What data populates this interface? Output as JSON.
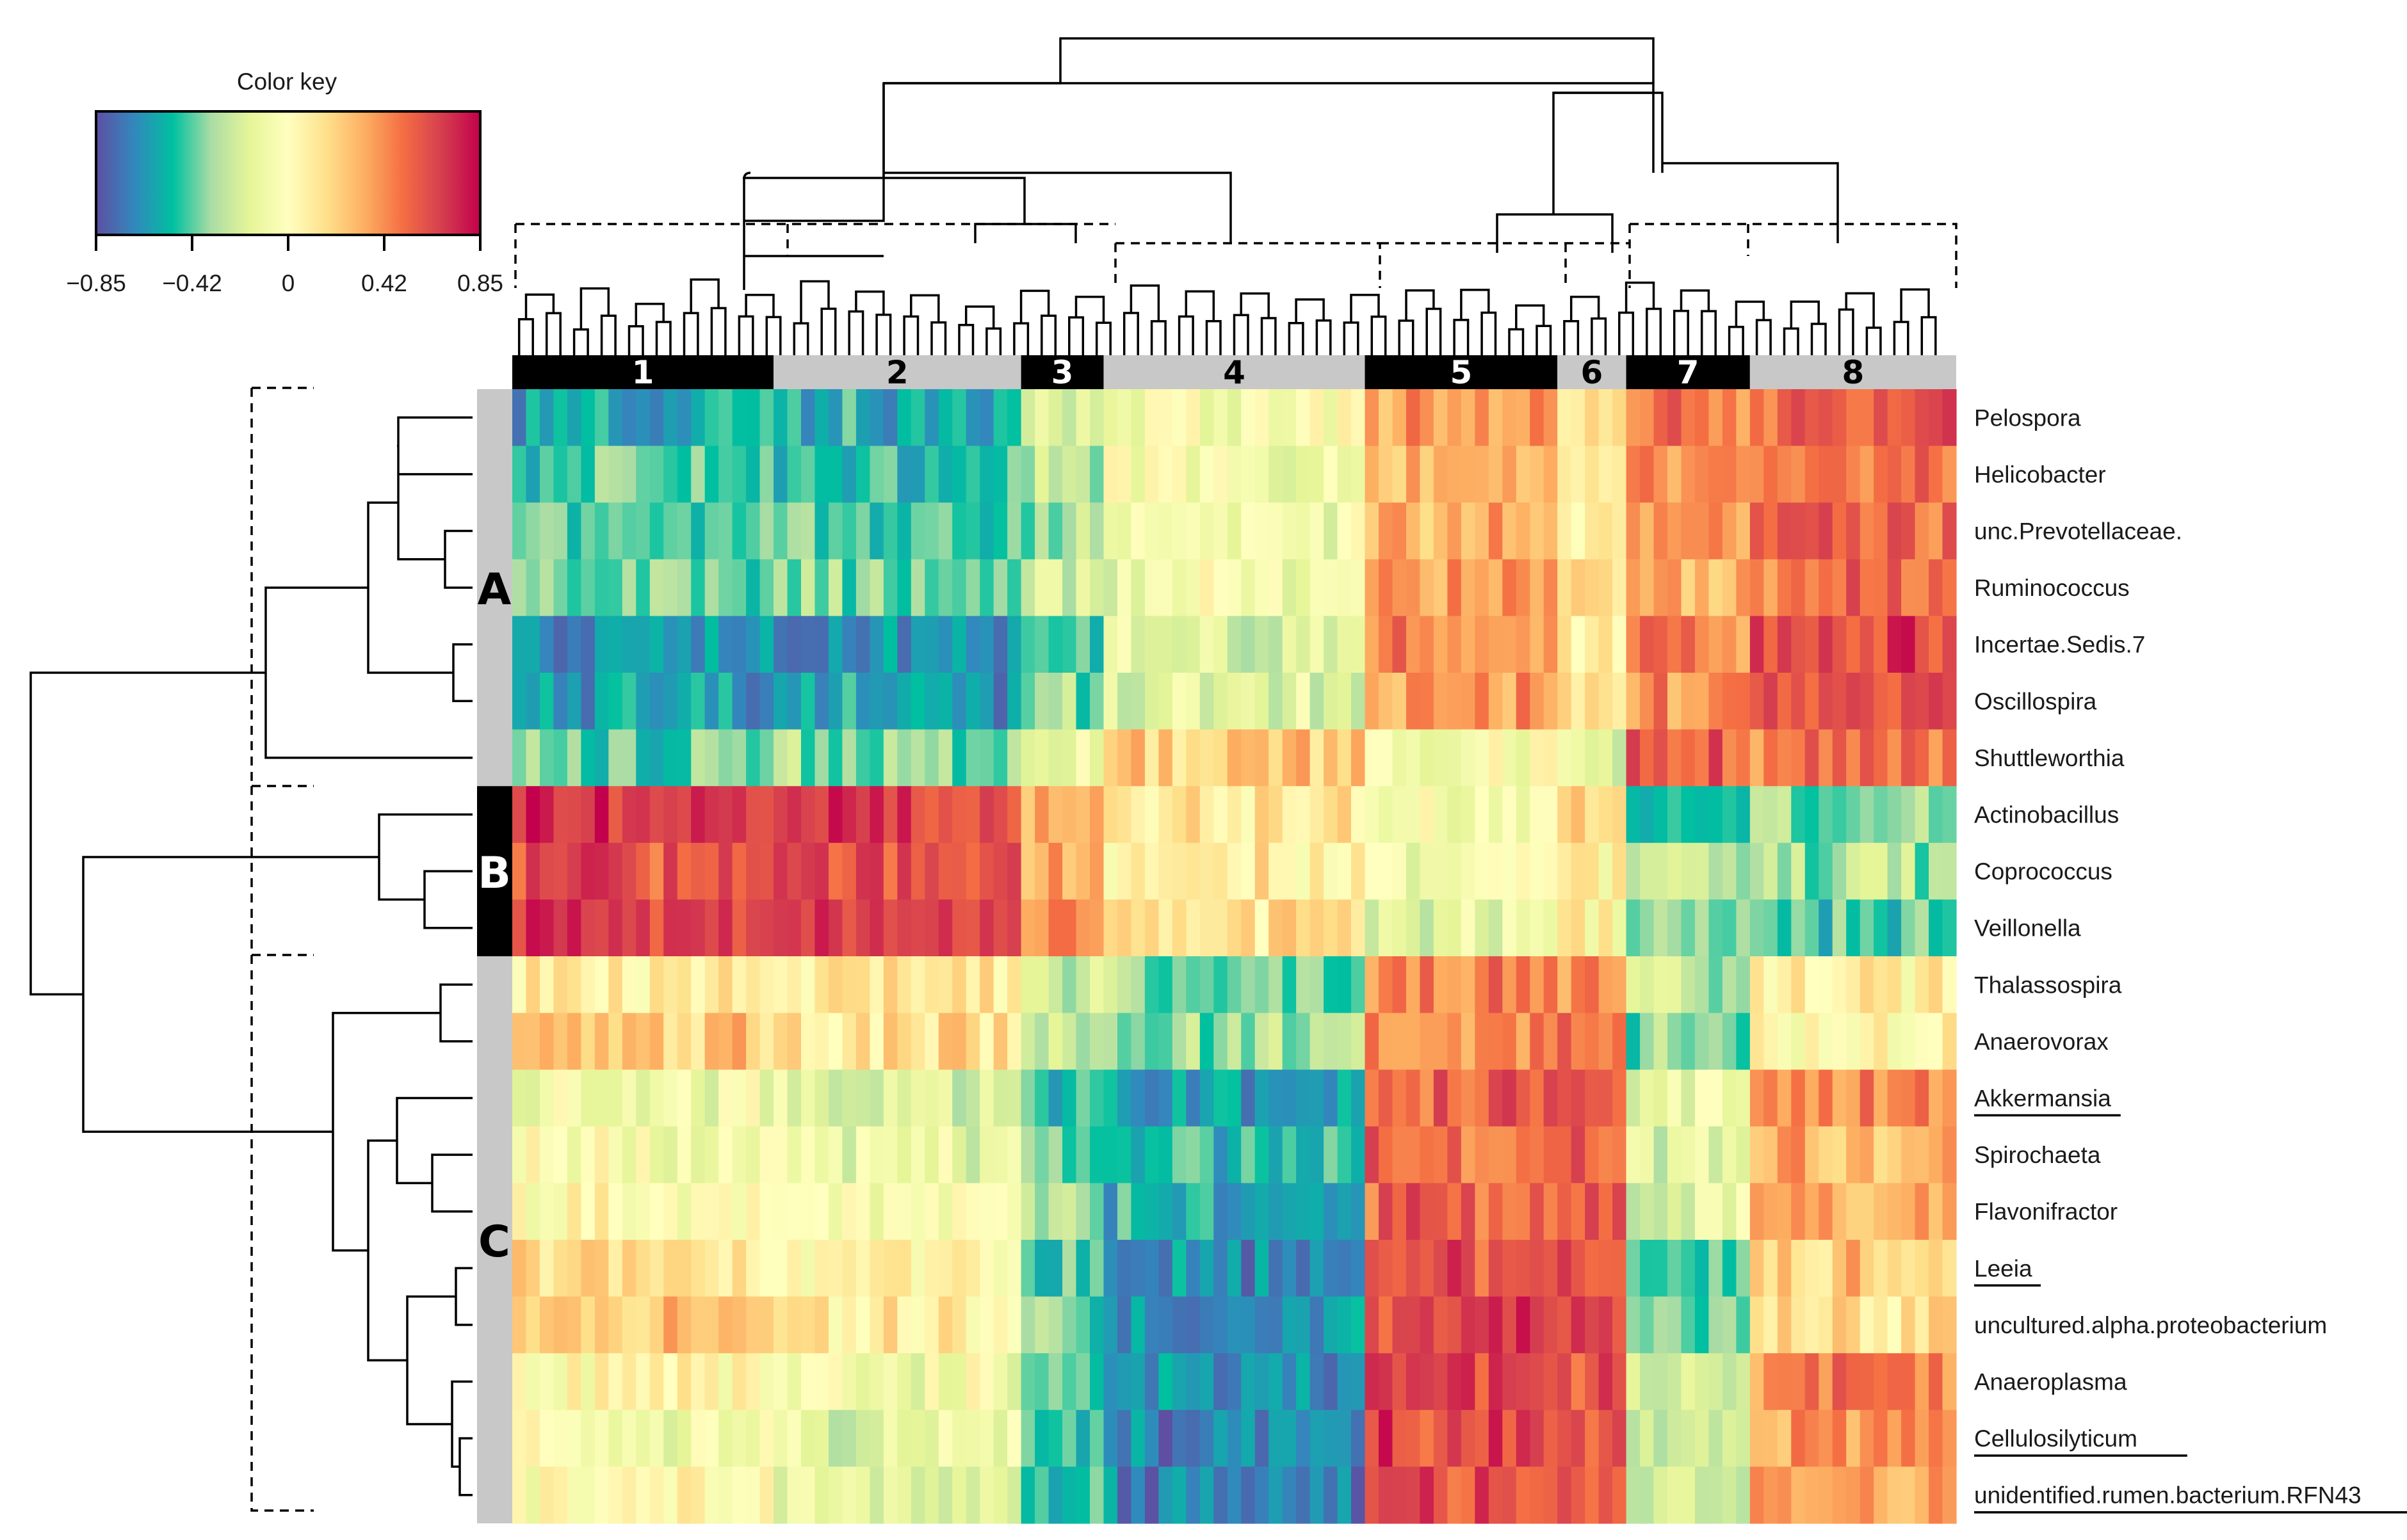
{
  "chart_data": {
    "type": "heatmap",
    "title": "",
    "legend": {
      "title": "Color key",
      "ticks": [
        "−0.85",
        "−0.42",
        "0",
        "0.42",
        "0.85"
      ],
      "range": [
        -0.85,
        0.85
      ],
      "colors": [
        "#5e4fa2",
        "#3288bd",
        "#00c0a0",
        "#abdda4",
        "#e6f598",
        "#ffffbf",
        "#fee08b",
        "#fdae61",
        "#f46d43",
        "#d53e4f",
        "#c2004b"
      ]
    },
    "column_clusters": [
      {
        "label": "1",
        "columns": 19
      },
      {
        "label": "2",
        "columns": 18
      },
      {
        "label": "3",
        "columns": 6
      },
      {
        "label": "4",
        "columns": 19
      },
      {
        "label": "5",
        "columns": 14
      },
      {
        "label": "6",
        "columns": 5
      },
      {
        "label": "7",
        "columns": 9
      },
      {
        "label": "8",
        "columns": 15
      }
    ],
    "row_groups": [
      {
        "label": "A",
        "rows": 7
      },
      {
        "label": "B",
        "rows": 3
      },
      {
        "label": "C",
        "rows": 10
      }
    ],
    "rows": [
      {
        "name": "Pelospora",
        "underline": false
      },
      {
        "name": "Helicobacter",
        "underline": false
      },
      {
        "name": "unc.Prevotellaceae.",
        "underline": false
      },
      {
        "name": "Ruminococcus",
        "underline": false
      },
      {
        "name": "Incertae.Sedis.7",
        "underline": false
      },
      {
        "name": "Oscillospira",
        "underline": false
      },
      {
        "name": "Shuttleworthia",
        "underline": false
      },
      {
        "name": "Actinobacillus",
        "underline": false
      },
      {
        "name": "Coprococcus",
        "underline": false
      },
      {
        "name": "Veillonella",
        "underline": false
      },
      {
        "name": "Thalassospira",
        "underline": false
      },
      {
        "name": "Anaerovorax",
        "underline": false
      },
      {
        "name": "Akkermansia",
        "underline": true
      },
      {
        "name": "Spirochaeta",
        "underline": false
      },
      {
        "name": "Flavonifractor",
        "underline": false
      },
      {
        "name": "Leeia",
        "underline": true
      },
      {
        "name": "uncultured.alpha.proteobacterium",
        "underline": false
      },
      {
        "name": "Anaeroplasma",
        "underline": false
      },
      {
        "name": "Cellulosilyticum",
        "underline": true
      },
      {
        "name": "unidentified.rumen.bacterium.RFN43",
        "underline": true
      }
    ],
    "mean_values": [
      [
        -0.55,
        -0.55,
        -0.25,
        -0.05,
        0.35,
        0.15,
        0.45,
        0.55
      ],
      [
        -0.45,
        -0.45,
        -0.25,
        -0.05,
        0.3,
        0.1,
        0.45,
        0.5
      ],
      [
        -0.45,
        -0.45,
        -0.3,
        -0.1,
        0.35,
        0.1,
        0.35,
        0.55
      ],
      [
        -0.4,
        -0.4,
        -0.25,
        -0.1,
        0.4,
        0.1,
        0.35,
        0.5
      ],
      [
        -0.65,
        -0.65,
        -0.4,
        -0.2,
        0.45,
        0.15,
        0.45,
        0.65
      ],
      [
        -0.6,
        -0.6,
        -0.4,
        -0.2,
        0.4,
        0.1,
        0.4,
        0.6
      ],
      [
        -0.45,
        -0.35,
        -0.05,
        0.25,
        -0.05,
        -0.15,
        0.55,
        0.45
      ],
      [
        0.7,
        0.7,
        0.3,
        0.1,
        -0.05,
        0.25,
        -0.45,
        -0.4
      ],
      [
        0.6,
        0.6,
        0.35,
        0.1,
        -0.1,
        0.05,
        -0.25,
        -0.3
      ],
      [
        0.7,
        0.7,
        0.4,
        0.15,
        -0.15,
        0.05,
        -0.35,
        -0.45
      ],
      [
        0.15,
        0.1,
        -0.25,
        -0.35,
        0.45,
        0.45,
        -0.25,
        0.1
      ],
      [
        0.25,
        0.15,
        -0.2,
        -0.35,
        0.4,
        0.45,
        -0.35,
        0.05
      ],
      [
        -0.1,
        -0.2,
        -0.55,
        -0.6,
        0.55,
        0.6,
        -0.1,
        0.4
      ],
      [
        -0.05,
        -0.1,
        -0.4,
        -0.5,
        0.5,
        0.55,
        -0.15,
        0.35
      ],
      [
        0.0,
        -0.05,
        -0.4,
        -0.55,
        0.55,
        0.55,
        -0.2,
        0.35
      ],
      [
        0.15,
        0.05,
        -0.45,
        -0.65,
        0.6,
        0.6,
        -0.4,
        0.25
      ],
      [
        0.25,
        0.1,
        -0.4,
        -0.65,
        0.65,
        0.65,
        -0.45,
        0.15
      ],
      [
        0.05,
        -0.05,
        -0.45,
        -0.65,
        0.65,
        0.6,
        -0.2,
        0.45
      ],
      [
        -0.05,
        -0.15,
        -0.5,
        -0.7,
        0.65,
        0.65,
        -0.25,
        0.4
      ],
      [
        0.0,
        -0.1,
        -0.45,
        -0.7,
        0.6,
        0.6,
        -0.25,
        0.35
      ]
    ]
  }
}
